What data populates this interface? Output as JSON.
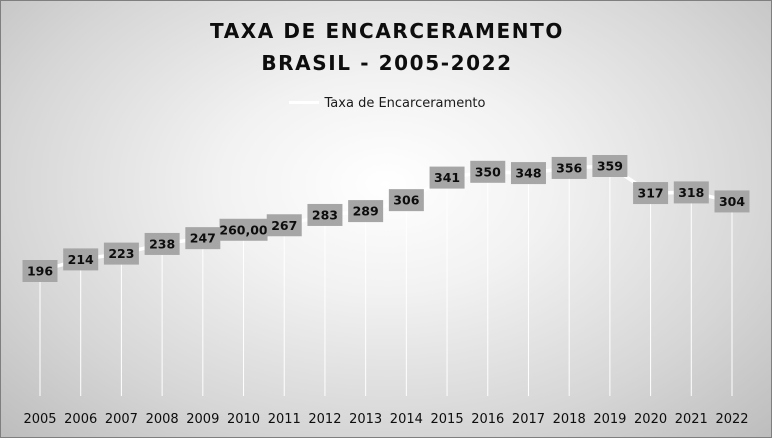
{
  "chart_data": {
    "type": "line",
    "title": [
      "TAXA DE ENCARCERAMENTO",
      "BRASIL - 2005-2022"
    ],
    "legend": {
      "position": "top",
      "entries": [
        "Taxa de Encarceramento"
      ]
    },
    "grid": false,
    "categories": [
      "2005",
      "2006",
      "2007",
      "2008",
      "2009",
      "2010",
      "2011",
      "2012",
      "2013",
      "2014",
      "2015",
      "2016",
      "2017",
      "2018",
      "2019",
      "2020",
      "2021",
      "2022"
    ],
    "series": [
      {
        "name": "Taxa de Encarceramento",
        "values": [
          196,
          214,
          223,
          238,
          247,
          260,
          267,
          283,
          289,
          306,
          341,
          350,
          348,
          356,
          359,
          317,
          318,
          304
        ],
        "data_labels": [
          "196",
          "214",
          "223",
          "238",
          "247",
          "260,00",
          "267",
          "283",
          "289",
          "306",
          "341",
          "350",
          "348",
          "356",
          "359",
          "317",
          "318",
          "304"
        ],
        "color": "#ffffff"
      }
    ],
    "colors": {
      "line": "#ffffff",
      "label_box": "#a6a6a6",
      "label_text": "#0d0d0d",
      "drop_line": "#ffffff"
    }
  }
}
